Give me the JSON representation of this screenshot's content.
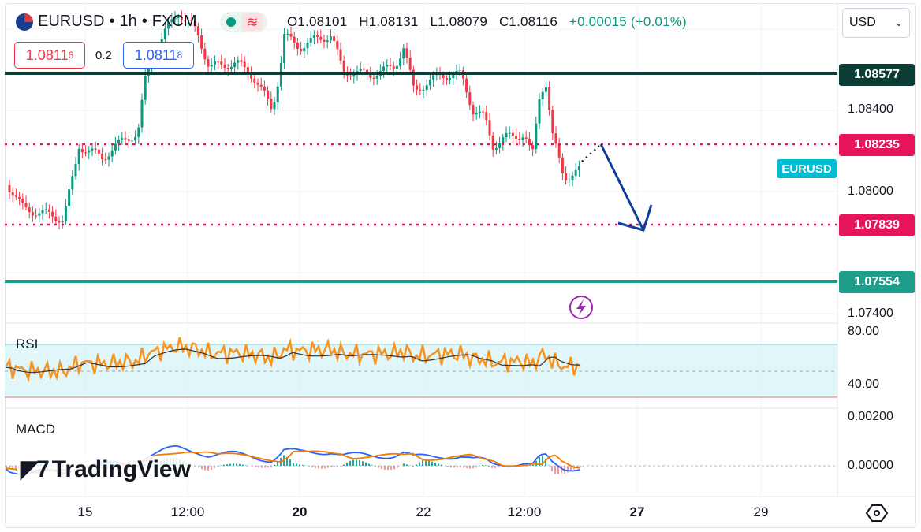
{
  "header": {
    "symbol": "EURUSD",
    "interval": "1h",
    "source": "FXCM",
    "ohlc": {
      "open": "O1.08101",
      "high": "H1.08131",
      "low": "L1.08079",
      "close": "C1.08116",
      "change": "+0.00015 (+0.01%)"
    }
  },
  "trade": {
    "sell_price": "1.0811",
    "sell_sup": "6",
    "spread": "0.2",
    "buy_price": "1.0811",
    "buy_sup": "8"
  },
  "currency": {
    "selected": "USD"
  },
  "price_axis": {
    "labels": [
      "1.08400",
      "1.08000",
      "1.07400"
    ],
    "levels": [
      {
        "label": "1.08577",
        "color": "#0b3d35"
      },
      {
        "label": "1.08235",
        "color": "#e6155a"
      },
      {
        "label": "1.07839",
        "color": "#e6155a"
      },
      {
        "label": "1.07554",
        "color": "#1e9e8a"
      }
    ],
    "symbol_tag": "EURUSD",
    "symbol_tag_color": "#00bcd4"
  },
  "indicators": {
    "rsi": {
      "label": "RSI",
      "axis": [
        "80.00",
        "40.00"
      ]
    },
    "macd": {
      "label": "MACD",
      "axis": [
        "0.00200",
        "0.00000"
      ]
    }
  },
  "time_axis": [
    "15",
    "12:00",
    "20",
    "22",
    "12:00",
    "27",
    "29"
  ],
  "watermark": "TradingView",
  "colors": {
    "up": "#089981",
    "down": "#f23645",
    "rsi": "#f7931e",
    "macd": "#2962ff",
    "signal": "#f57c00",
    "arrow": "#0d3c9c"
  }
}
